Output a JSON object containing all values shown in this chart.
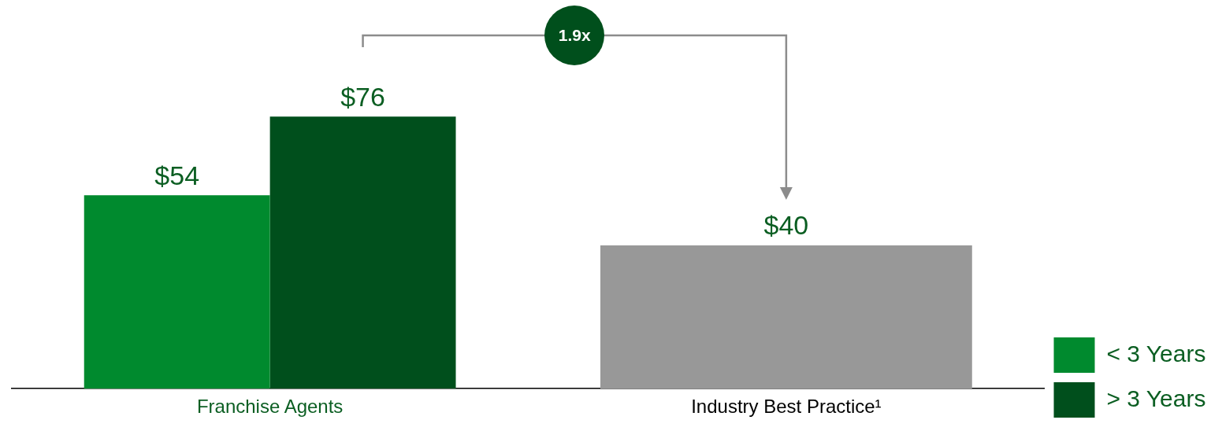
{
  "chart_data": {
    "type": "bar",
    "categories": [
      "Franchise Agents",
      "Industry Best Practice¹"
    ],
    "series": [
      {
        "name": "< 3 Years",
        "color": "#008a2e",
        "values": [
          54,
          null
        ],
        "value_labels": [
          "$54",
          null
        ]
      },
      {
        "name": "> 3 Years",
        "color": "#004f1c",
        "values": [
          76,
          null
        ],
        "value_labels": [
          "$76",
          null
        ]
      },
      {
        "color": "#989898",
        "values": [
          null,
          40
        ],
        "value_labels": [
          null,
          "$40"
        ]
      }
    ],
    "annotations": [
      "1.9x"
    ],
    "legend": "right",
    "grid": false
  }
}
